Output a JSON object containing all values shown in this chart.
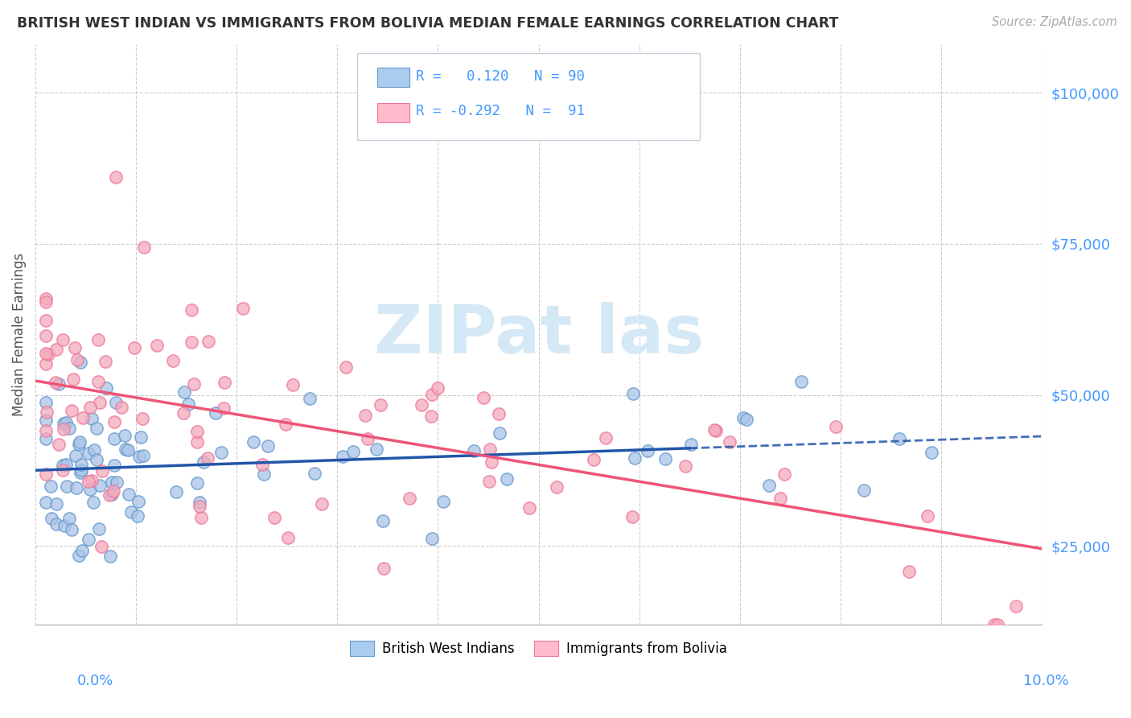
{
  "title": "BRITISH WEST INDIAN VS IMMIGRANTS FROM BOLIVIA MEDIAN FEMALE EARNINGS CORRELATION CHART",
  "source": "Source: ZipAtlas.com",
  "ylabel": "Median Female Earnings",
  "xlim": [
    0.0,
    0.1
  ],
  "ylim": [
    12000,
    108000
  ],
  "yticks": [
    25000,
    50000,
    75000,
    100000
  ],
  "ytick_labels": [
    "$25,000",
    "$50,000",
    "$75,000",
    "$100,000"
  ],
  "blue_scatter_color": "#aac4e8",
  "pink_scatter_color": "#f4aabb",
  "blue_edge_color": "#6699cc",
  "pink_edge_color": "#ee7799",
  "blue_line_color": "#2255aa",
  "pink_line_color": "#ee5577",
  "grid_color": "#cccccc",
  "tick_color": "#4499ff",
  "watermark_color": "#d5e8f5",
  "legend_box_color": "#f8f8ff",
  "legend_border_color": "#ccccdd",
  "blue_legend_fill": "#aaccee",
  "pink_legend_fill": "#ffbbcc",
  "source_color": "#aaaaaa",
  "title_color": "#333333",
  "ylabel_color": "#555555"
}
